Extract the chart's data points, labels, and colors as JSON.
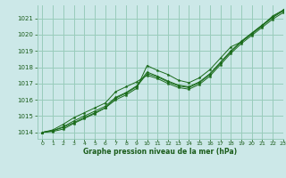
{
  "bg_color": "#cce8e8",
  "grid_color": "#99ccbb",
  "line_color": "#1a6b1a",
  "marker_color": "#1a6b1a",
  "xlabel": "Graphe pression niveau de la mer (hPa)",
  "xlabel_color": "#1a5c1a",
  "xlim": [
    -0.5,
    23
  ],
  "ylim": [
    1013.6,
    1021.8
  ],
  "yticks": [
    1014,
    1015,
    1016,
    1017,
    1018,
    1019,
    1020,
    1021
  ],
  "xticks": [
    0,
    1,
    2,
    3,
    4,
    5,
    6,
    7,
    8,
    9,
    10,
    11,
    12,
    13,
    14,
    15,
    16,
    17,
    18,
    19,
    20,
    21,
    22,
    23
  ],
  "series": [
    [
      1014.0,
      1014.05,
      1014.2,
      1014.55,
      1014.85,
      1015.15,
      1015.5,
      1016.0,
      1016.3,
      1016.7,
      1018.1,
      1017.8,
      1017.55,
      1017.2,
      1017.05,
      1017.35,
      1017.85,
      1018.55,
      1019.25,
      1019.55,
      1020.05,
      1020.55,
      1021.15,
      1021.5
    ],
    [
      1014.0,
      1014.1,
      1014.3,
      1014.6,
      1014.9,
      1015.2,
      1015.5,
      1016.1,
      1016.4,
      1016.8,
      1017.6,
      1017.4,
      1017.1,
      1016.85,
      1016.75,
      1017.05,
      1017.55,
      1018.25,
      1018.95,
      1019.55,
      1020.05,
      1020.55,
      1021.05,
      1021.45
    ],
    [
      1014.0,
      1014.1,
      1014.35,
      1014.7,
      1015.0,
      1015.3,
      1015.6,
      1016.15,
      1016.45,
      1016.85,
      1017.7,
      1017.45,
      1017.15,
      1016.9,
      1016.8,
      1017.1,
      1017.6,
      1018.3,
      1019.0,
      1019.6,
      1020.1,
      1020.6,
      1021.1,
      1021.5
    ],
    [
      1014.0,
      1014.15,
      1014.5,
      1014.9,
      1015.2,
      1015.5,
      1015.8,
      1016.5,
      1016.8,
      1017.1,
      1017.5,
      1017.3,
      1017.0,
      1016.75,
      1016.65,
      1016.95,
      1017.45,
      1018.15,
      1018.85,
      1019.45,
      1019.95,
      1020.45,
      1020.95,
      1021.35
    ]
  ]
}
